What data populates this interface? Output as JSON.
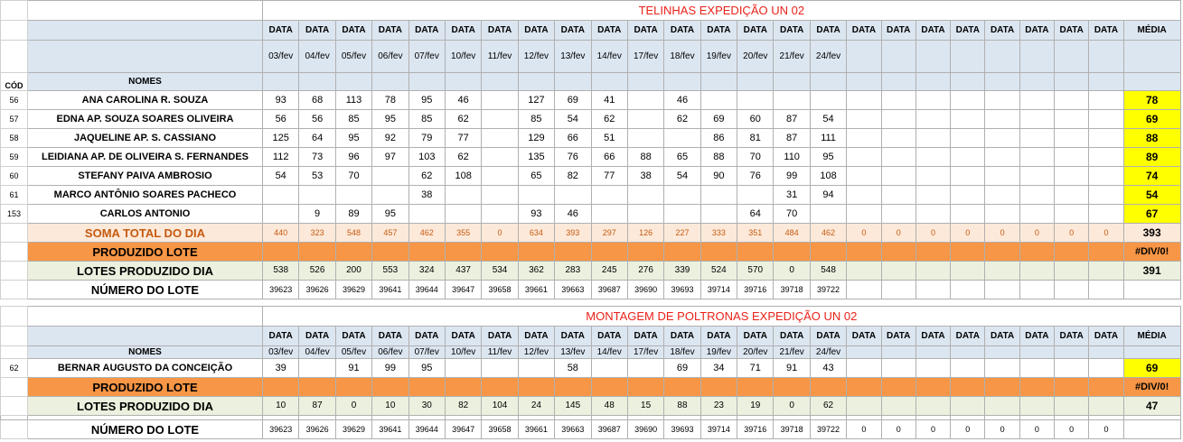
{
  "dates": [
    "03/fev",
    "04/fev",
    "05/fev",
    "06/fev",
    "07/fev",
    "10/fev",
    "11/fev",
    "12/fev",
    "13/fev",
    "14/fev",
    "17/fev",
    "18/fev",
    "19/fev",
    "20/fev",
    "21/fev",
    "24/fev",
    "",
    "",
    "",
    "",
    "",
    "",
    "",
    ""
  ],
  "data_label": "DATA",
  "media_label": "MÉDIA",
  "cod_label": "CÓD",
  "nomes_label": "NOMES",
  "t1": {
    "title": "TELINHAS EXPEDIÇÃO UN 02",
    "rows": [
      {
        "cod": "56",
        "name": "ANA CAROLINA R. SOUZA",
        "vals": [
          "93",
          "68",
          "113",
          "78",
          "95",
          "46",
          "",
          "127",
          "69",
          "41",
          "",
          "46",
          "",
          "",
          "",
          "",
          "",
          "",
          "",
          "",
          "",
          "",
          "",
          ""
        ],
        "avg": "78"
      },
      {
        "cod": "57",
        "name": "EDNA AP. SOUZA SOARES OLIVEIRA",
        "vals": [
          "56",
          "56",
          "85",
          "95",
          "85",
          "62",
          "",
          "85",
          "54",
          "62",
          "",
          "62",
          "69",
          "60",
          "87",
          "54",
          "",
          "",
          "",
          "",
          "",
          "",
          "",
          ""
        ],
        "avg": "69"
      },
      {
        "cod": "58",
        "name": "JAQUELINE AP.  S. CASSIANO",
        "vals": [
          "125",
          "64",
          "95",
          "92",
          "79",
          "77",
          "",
          "129",
          "66",
          "51",
          "",
          "",
          "86",
          "81",
          "87",
          "111",
          "",
          "",
          "",
          "",
          "",
          "",
          "",
          ""
        ],
        "avg": "88"
      },
      {
        "cod": "59",
        "name": "LEIDIANA AP. DE OLIVEIRA S. FERNANDES",
        "vals": [
          "112",
          "73",
          "96",
          "97",
          "103",
          "62",
          "",
          "135",
          "76",
          "66",
          "88",
          "65",
          "88",
          "70",
          "110",
          "95",
          "",
          "",
          "",
          "",
          "",
          "",
          "",
          ""
        ],
        "avg": "89"
      },
      {
        "cod": "60",
        "name": "STEFANY PAIVA AMBROSIO",
        "vals": [
          "54",
          "53",
          "70",
          "",
          "62",
          "108",
          "",
          "65",
          "82",
          "77",
          "38",
          "54",
          "90",
          "76",
          "99",
          "108",
          "",
          "",
          "",
          "",
          "",
          "",
          "",
          ""
        ],
        "avg": "74"
      },
      {
        "cod": "61",
        "name": "MARCO ANTÔNIO SOARES PACHECO",
        "vals": [
          "",
          "",
          "",
          "",
          "38",
          "",
          "",
          "",
          "",
          "",
          "",
          "",
          "",
          "",
          "31",
          "94",
          "",
          "",
          "",
          "",
          "",
          "",
          "",
          ""
        ],
        "avg": "54"
      },
      {
        "cod": "153",
        "name": "CARLOS ANTONIO",
        "vals": [
          "",
          "9",
          "89",
          "95",
          "",
          "",
          "",
          "93",
          "46",
          "",
          "",
          "",
          "",
          "64",
          "70",
          "",
          "",
          "",
          "",
          "",
          "",
          "",
          "",
          ""
        ],
        "avg": "67"
      }
    ],
    "soma_label": "SOMA TOTAL DO DIA",
    "soma": [
      "440",
      "323",
      "548",
      "457",
      "462",
      "355",
      "0",
      "634",
      "393",
      "297",
      "126",
      "227",
      "333",
      "351",
      "484",
      "462",
      "0",
      "0",
      "0",
      "0",
      "0",
      "0",
      "0",
      "0"
    ],
    "soma_avg": "393",
    "prod_label": "PRODUZIDO LOTE",
    "prod_avg": "#DIV/0!",
    "lotes_label": "LOTES PRODUZIDO DIA",
    "lotes": [
      "538",
      "526",
      "200",
      "553",
      "324",
      "437",
      "534",
      "362",
      "283",
      "245",
      "276",
      "339",
      "524",
      "570",
      "0",
      "548",
      "",
      "",
      "",
      "",
      "",
      "",
      "",
      ""
    ],
    "lotes_avg": "391",
    "num_label": "NÚMERO DO LOTE",
    "num": [
      "39623",
      "39626",
      "39629",
      "39641",
      "39644",
      "39647",
      "39658",
      "39661",
      "39663",
      "39687",
      "39690",
      "39693",
      "39714",
      "39716",
      "39718",
      "39722",
      "",
      "",
      "",
      "",
      "",
      "",
      "",
      ""
    ]
  },
  "t2": {
    "title": "MONTAGEM DE POLTRONAS EXPEDIÇÃO UN 02",
    "rows": [
      {
        "cod": "62",
        "name": "BERNAR AUGUSTO DA CONCEIÇÃO",
        "vals": [
          "39",
          "",
          "91",
          "99",
          "95",
          "",
          "",
          "",
          "58",
          "",
          "",
          "69",
          "34",
          "71",
          "91",
          "43",
          "",
          "",
          "",
          "",
          "",
          "",
          "",
          ""
        ],
        "avg": "69"
      }
    ],
    "prod_label": "PRODUZIDO LOTE",
    "prod_avg": "#DIV/0!",
    "lotes_label": "LOTES PRODUZIDO DIA",
    "lotes": [
      "10",
      "87",
      "0",
      "10",
      "30",
      "82",
      "104",
      "24",
      "145",
      "48",
      "15",
      "88",
      "23",
      "19",
      "0",
      "62",
      "",
      "",
      "",
      "",
      "",
      "",
      "",
      ""
    ],
    "lotes_avg": "47",
    "num_label": "NÚMERO DO LOTE",
    "num": [
      "39623",
      "39626",
      "39629",
      "39641",
      "39644",
      "39647",
      "39658",
      "39661",
      "39663",
      "39687",
      "39690",
      "39693",
      "39714",
      "39716",
      "39718",
      "39722",
      "0",
      "0",
      "0",
      "0",
      "0",
      "0",
      "0",
      "0"
    ]
  }
}
